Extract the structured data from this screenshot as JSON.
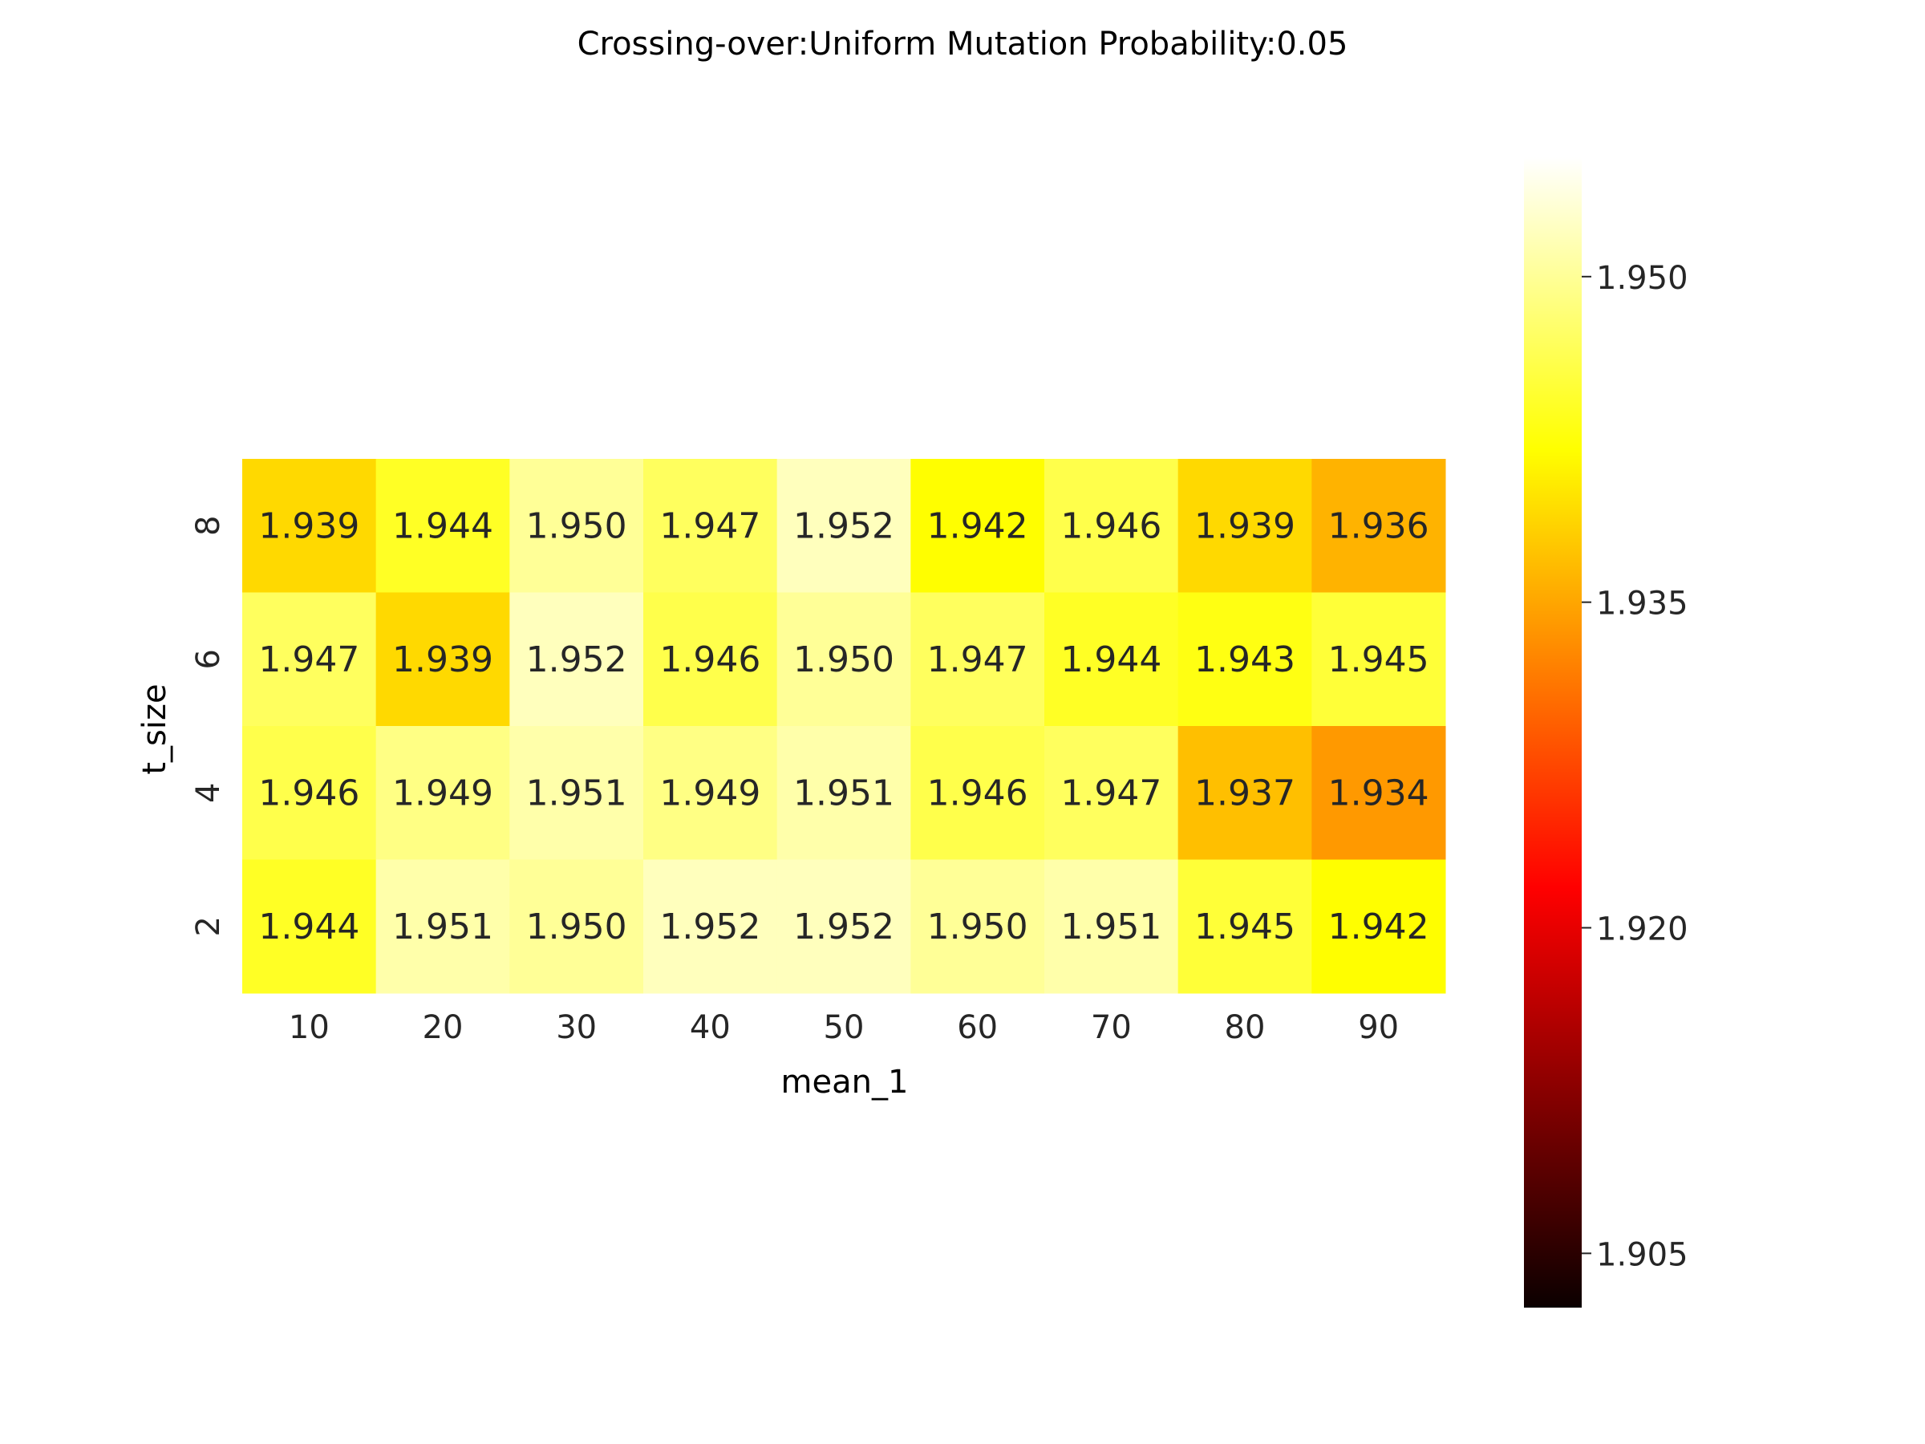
{
  "chart_data": {
    "type": "heatmap",
    "title": "Crossing-over:Uniform Mutation Probability:0.05",
    "xlabel": "mean_1",
    "ylabel": "t_size",
    "x_categories": [
      "10",
      "20",
      "30",
      "40",
      "50",
      "60",
      "70",
      "80",
      "90"
    ],
    "y_categories": [
      "8",
      "6",
      "4",
      "2"
    ],
    "values": [
      [
        1.939,
        1.944,
        1.95,
        1.947,
        1.952,
        1.942,
        1.946,
        1.939,
        1.936
      ],
      [
        1.947,
        1.939,
        1.952,
        1.946,
        1.95,
        1.947,
        1.944,
        1.943,
        1.945
      ],
      [
        1.946,
        1.949,
        1.951,
        1.949,
        1.951,
        1.946,
        1.947,
        1.937,
        1.934
      ],
      [
        1.944,
        1.951,
        1.95,
        1.952,
        1.952,
        1.95,
        1.951,
        1.945,
        1.942
      ]
    ],
    "cell_labels": [
      [
        "1.939",
        "1.944",
        "1.950",
        "1.947",
        "1.952",
        "1.942",
        "1.946",
        "1.939",
        "1.936"
      ],
      [
        "1.947",
        "1.939",
        "1.952",
        "1.946",
        "1.950",
        "1.947",
        "1.944",
        "1.943",
        "1.945"
      ],
      [
        "1.946",
        "1.949",
        "1.951",
        "1.949",
        "1.951",
        "1.946",
        "1.947",
        "1.937",
        "1.934"
      ],
      [
        "1.944",
        "1.951",
        "1.950",
        "1.952",
        "1.952",
        "1.950",
        "1.951",
        "1.945",
        "1.942"
      ]
    ],
    "colormap": "hot",
    "colorbar": {
      "range": [
        1.9025,
        1.9555
      ],
      "ticks": [
        1.905,
        1.92,
        1.935,
        1.95
      ],
      "tick_labels": [
        "1.905",
        "1.920",
        "1.935",
        "1.950"
      ]
    },
    "grid": false,
    "legend": "none"
  }
}
